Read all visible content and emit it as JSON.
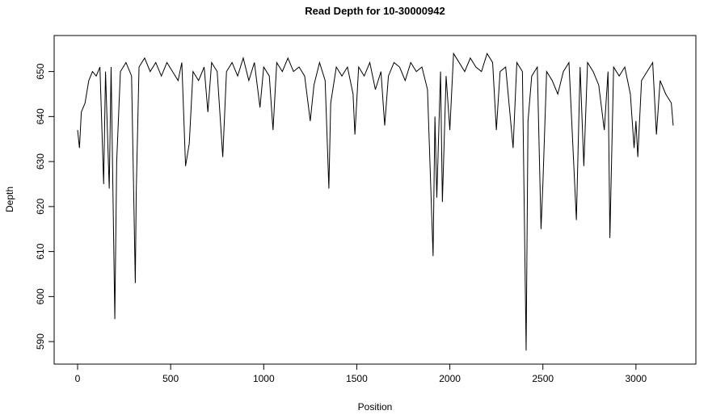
{
  "chart_data": {
    "type": "line",
    "title": "Read Depth for 10-30000942",
    "x_label": "Position",
    "y_label": "Depth",
    "color": "#000000",
    "x": [
      0,
      10,
      20,
      40,
      60,
      80,
      100,
      120,
      140,
      150,
      170,
      180,
      200,
      210,
      230,
      260,
      290,
      310,
      315,
      330,
      360,
      390,
      420,
      450,
      480,
      510,
      540,
      560,
      580,
      600,
      620,
      650,
      680,
      700,
      720,
      750,
      780,
      800,
      830,
      860,
      890,
      920,
      950,
      980,
      1000,
      1030,
      1050,
      1070,
      1100,
      1130,
      1160,
      1190,
      1220,
      1250,
      1270,
      1300,
      1330,
      1350,
      1360,
      1390,
      1420,
      1450,
      1480,
      1490,
      1510,
      1540,
      1570,
      1600,
      1630,
      1650,
      1670,
      1700,
      1730,
      1760,
      1790,
      1820,
      1850,
      1880,
      1910,
      1920,
      1930,
      1950,
      1960,
      1980,
      2000,
      2020,
      2050,
      2080,
      2110,
      2140,
      2170,
      2200,
      2230,
      2250,
      2270,
      2300,
      2340,
      2360,
      2390,
      2410,
      2420,
      2440,
      2470,
      2490,
      2500,
      2520,
      2550,
      2580,
      2610,
      2640,
      2680,
      2700,
      2720,
      2740,
      2770,
      2800,
      2830,
      2850,
      2860,
      2880,
      2910,
      2940,
      2970,
      2990,
      3000,
      3010,
      3030,
      3060,
      3090,
      3110,
      3130,
      3160,
      3190,
      3200
    ],
    "values": [
      637,
      633,
      641,
      643,
      648,
      650,
      649,
      651,
      625,
      650,
      624,
      651,
      595,
      630,
      650,
      652,
      649,
      603,
      623,
      651,
      653,
      650,
      652,
      649,
      652,
      650,
      648,
      652,
      629,
      634,
      650,
      648,
      651,
      641,
      652,
      650,
      631,
      650,
      652,
      649,
      653,
      648,
      652,
      642,
      651,
      649,
      637,
      652,
      650,
      653,
      650,
      651,
      649,
      639,
      647,
      652,
      648,
      624,
      643,
      651,
      649,
      651,
      645,
      636,
      651,
      649,
      652,
      646,
      650,
      638,
      649,
      652,
      651,
      648,
      652,
      650,
      651,
      646,
      609,
      640,
      622,
      650,
      621,
      649,
      637,
      654,
      652,
      650,
      653,
      651,
      650,
      654,
      652,
      637,
      650,
      651,
      633,
      652,
      650,
      588,
      639,
      649,
      651,
      615,
      625,
      650,
      648,
      645,
      650,
      652,
      617,
      651,
      629,
      652,
      650,
      647,
      637,
      650,
      613,
      651,
      649,
      651,
      645,
      633,
      639,
      631,
      648,
      650,
      652,
      636,
      648,
      645,
      643,
      638
    ],
    "xlim": [
      -126,
      3322
    ],
    "ylim": [
      585,
      658
    ],
    "xticks": [
      0,
      500,
      1000,
      1500,
      2000,
      2500,
      3000
    ],
    "yticks": [
      590,
      600,
      610,
      620,
      630,
      640,
      650
    ]
  }
}
